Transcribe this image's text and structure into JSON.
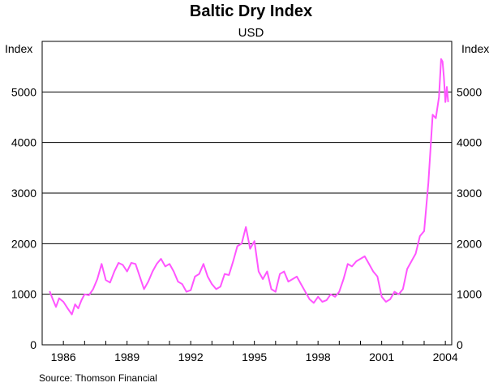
{
  "chart_data": {
    "type": "line",
    "title": "Baltic Dry Index",
    "subtitle": "USD",
    "ylabel_left": "Index",
    "ylabel_right": "Index",
    "source": "Source: Thomson Financial",
    "ylim": [
      0,
      6000
    ],
    "xlim": [
      1985.0,
      2004.3
    ],
    "yticks": [
      0,
      1000,
      2000,
      3000,
      4000,
      5000
    ],
    "yticks_labels": [
      "0",
      "1000",
      "2000",
      "3000",
      "4000",
      "5000"
    ],
    "xticks": [
      1986,
      1989,
      1992,
      1995,
      1998,
      2001,
      2004
    ],
    "xticks_labels": [
      "1986",
      "1989",
      "1992",
      "1995",
      "1998",
      "2001",
      "2004"
    ],
    "grid": "horizontal",
    "line_color": "#ff55ff",
    "series": [
      {
        "x": [
          1985.35,
          1985.5,
          1985.65,
          1985.8,
          1986.0,
          1986.2,
          1986.4,
          1986.55,
          1986.7,
          1986.85,
          1987.0,
          1987.2,
          1987.4,
          1987.6,
          1987.8,
          1988.0,
          1988.2,
          1988.4,
          1988.6,
          1988.8,
          1989.0,
          1989.2,
          1989.4,
          1989.6,
          1989.8,
          1990.0,
          1990.2,
          1990.4,
          1990.6,
          1990.8,
          1991.0,
          1991.2,
          1991.4,
          1991.6,
          1991.8,
          1992.0,
          1992.2,
          1992.4,
          1992.6,
          1992.8,
          1993.0,
          1993.2,
          1993.4,
          1993.6,
          1993.8,
          1994.0,
          1994.2,
          1994.4,
          1994.6,
          1994.8,
          1995.0,
          1995.2,
          1995.4,
          1995.6,
          1995.8,
          1996.0,
          1996.2,
          1996.4,
          1996.6,
          1996.8,
          1997.0,
          1997.2,
          1997.4,
          1997.6,
          1997.8,
          1998.0,
          1998.2,
          1998.4,
          1998.6,
          1998.8,
          1999.0,
          1999.2,
          1999.4,
          1999.6,
          1999.8,
          2000.0,
          2000.2,
          2000.4,
          2000.6,
          2000.8,
          2001.0,
          2001.2,
          2001.4,
          2001.6,
          2001.8,
          2002.0,
          2002.2,
          2002.4,
          2002.6,
          2002.8,
          2003.0,
          2003.2,
          2003.4,
          2003.55,
          2003.7,
          2003.8,
          2003.87,
          2003.93,
          2004.0,
          2004.07,
          2004.13
        ],
        "y": [
          1060,
          900,
          750,
          920,
          850,
          720,
          600,
          800,
          720,
          880,
          1000,
          980,
          1100,
          1300,
          1600,
          1280,
          1230,
          1450,
          1620,
          1580,
          1450,
          1620,
          1600,
          1350,
          1100,
          1250,
          1450,
          1600,
          1700,
          1550,
          1600,
          1450,
          1250,
          1200,
          1050,
          1080,
          1350,
          1400,
          1600,
          1350,
          1200,
          1100,
          1150,
          1400,
          1380,
          1650,
          1950,
          2000,
          2330,
          1900,
          2050,
          1450,
          1300,
          1450,
          1100,
          1050,
          1400,
          1450,
          1250,
          1300,
          1350,
          1200,
          1050,
          900,
          830,
          950,
          850,
          880,
          1000,
          950,
          1050,
          1300,
          1600,
          1550,
          1650,
          1700,
          1750,
          1600,
          1450,
          1350,
          950,
          850,
          900,
          1050,
          1000,
          1100,
          1500,
          1650,
          1800,
          2150,
          2250,
          3200,
          4550,
          4480,
          4900,
          5650,
          5600,
          5300,
          4800,
          5100,
          4800
        ]
      }
    ]
  }
}
